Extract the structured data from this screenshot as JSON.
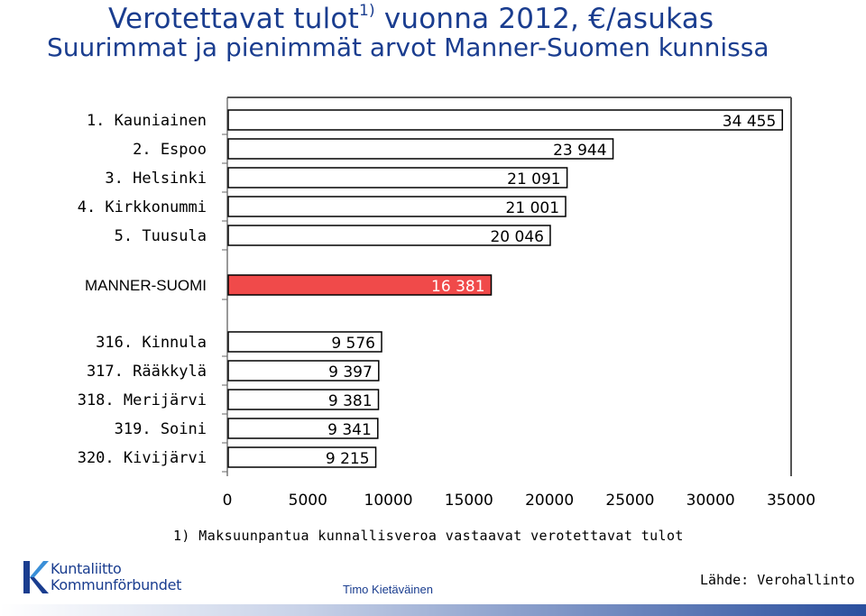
{
  "title": {
    "main": "Verotettavat tulot",
    "superscript": "1)",
    "rest": " vuonna 2012, €/asukas",
    "subtitle": "Suurimmat ja pienimmät arvot Manner-Suomen kunnissa"
  },
  "chart_data": {
    "type": "bar",
    "orientation": "horizontal",
    "groups": [
      {
        "name": "top",
        "categories": [
          "1. Kauniainen",
          "2. Espoo",
          "3. Helsinki",
          "4. Kirkkonummi",
          "5. Tuusula"
        ],
        "values": [
          34455,
          23944,
          21091,
          21001,
          20046
        ],
        "labels": [
          "34 455",
          "23 944",
          "21 091",
          "21 001",
          "20 046"
        ],
        "color": "#ffffff"
      },
      {
        "name": "average",
        "categories": [
          "MANNER-SUOMI"
        ],
        "values": [
          16381
        ],
        "labels": [
          "16 381"
        ],
        "color": "#f04a4a"
      },
      {
        "name": "bottom",
        "categories": [
          "316. Kinnula",
          "317. Rääkkylä",
          "318. Merijärvi",
          "319. Soini",
          "320. Kivijärvi"
        ],
        "values": [
          9576,
          9397,
          9381,
          9341,
          9215
        ],
        "labels": [
          "9 576",
          "9 397",
          "9 381",
          "9 341",
          "9 215"
        ],
        "color": "#ffffff"
      }
    ],
    "xlim": [
      0,
      35000
    ],
    "xticks": [
      0,
      5000,
      10000,
      15000,
      20000,
      25000,
      30000,
      35000
    ],
    "xtick_labels": [
      "0",
      "5000",
      "10000",
      "15000",
      "20000",
      "25000",
      "30000",
      "35000"
    ],
    "xlabel": "",
    "ylabel": "",
    "grid": false
  },
  "footnote": "1) Maksuunpantua kunnallisveroa vastaavat verotettavat tulot",
  "logo": {
    "line1": "Kuntaliitto",
    "line2": "Kommunförbundet"
  },
  "author": "Timo Kietäväinen",
  "source": "Lähde: Verohallinto"
}
